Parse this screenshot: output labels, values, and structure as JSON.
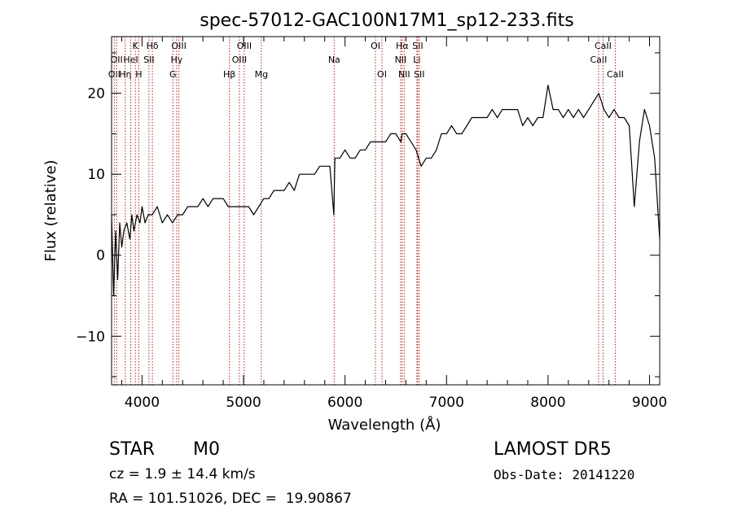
{
  "chart_data": {
    "type": "line",
    "title": "spec-57012-GAC100N17M1_sp12-233.fits",
    "xlabel": "Wavelength (Å)",
    "ylabel": "Flux (relative)",
    "xlim": [
      3700,
      9100
    ],
    "ylim": [
      -16,
      27
    ],
    "xticks": [
      4000,
      5000,
      6000,
      7000,
      8000,
      9000
    ],
    "yticks": [
      -10,
      0,
      10,
      20
    ],
    "xtick_labels": [
      "4000",
      "5000",
      "6000",
      "7000",
      "8000",
      "9000"
    ],
    "ytick_labels": [
      "−10",
      "0",
      "10",
      "20"
    ],
    "line_color": "#000000",
    "marker_color": "#b22222",
    "spectrum": {
      "x": [
        3700,
        3720,
        3740,
        3760,
        3780,
        3800,
        3820,
        3850,
        3880,
        3900,
        3920,
        3950,
        3980,
        4000,
        4030,
        4060,
        4100,
        4150,
        4200,
        4250,
        4300,
        4350,
        4400,
        4450,
        4500,
        4550,
        4600,
        4650,
        4700,
        4750,
        4800,
        4850,
        4900,
        4950,
        5000,
        5050,
        5100,
        5150,
        5200,
        5250,
        5300,
        5350,
        5400,
        5450,
        5500,
        5550,
        5600,
        5650,
        5700,
        5750,
        5800,
        5850,
        5890,
        5900,
        5950,
        6000,
        6050,
        6100,
        6150,
        6200,
        6250,
        6300,
        6350,
        6400,
        6450,
        6500,
        6550,
        6563,
        6600,
        6650,
        6700,
        6750,
        6800,
        6850,
        6900,
        6950,
        7000,
        7050,
        7100,
        7150,
        7200,
        7250,
        7300,
        7350,
        7400,
        7450,
        7500,
        7550,
        7600,
        7650,
        7700,
        7750,
        7800,
        7850,
        7900,
        7950,
        8000,
        8050,
        8100,
        8150,
        8200,
        8250,
        8300,
        8350,
        8400,
        8450,
        8500,
        8550,
        8600,
        8650,
        8700,
        8750,
        8800,
        8820,
        8850,
        8900,
        8950,
        9000,
        9050,
        9100
      ],
      "y": [
        5,
        -5,
        3,
        -3,
        4,
        1,
        3,
        4,
        2,
        5,
        3,
        5,
        4,
        6,
        4,
        5,
        5,
        6,
        4,
        5,
        4,
        5,
        5,
        6,
        6,
        6,
        7,
        6,
        7,
        7,
        7,
        6,
        6,
        6,
        6,
        6,
        5,
        6,
        7,
        7,
        8,
        8,
        8,
        9,
        8,
        10,
        10,
        10,
        10,
        11,
        11,
        11,
        5,
        12,
        12,
        13,
        12,
        12,
        13,
        13,
        14,
        14,
        14,
        14,
        15,
        15,
        14,
        15,
        15,
        14,
        13,
        11,
        12,
        12,
        13,
        15,
        15,
        16,
        15,
        15,
        16,
        17,
        17,
        17,
        17,
        18,
        17,
        18,
        18,
        18,
        18,
        16,
        17,
        16,
        17,
        17,
        21,
        18,
        18,
        17,
        18,
        17,
        18,
        17,
        18,
        19,
        20,
        18,
        17,
        18,
        17,
        17,
        16,
        12,
        6,
        14,
        18,
        16,
        12,
        2
      ]
    },
    "line_markers": [
      {
        "wavelength": 3727,
        "label": "OII",
        "row": 2
      },
      {
        "wavelength": 3750,
        "label": "OII",
        "row": 1
      },
      {
        "wavelength": 3835,
        "label": "Hη",
        "row": 2
      },
      {
        "wavelength": 3889,
        "label": "HeI",
        "row": 1
      },
      {
        "wavelength": 3934,
        "label": "K",
        "row": 0
      },
      {
        "wavelength": 3968,
        "label": "H",
        "row": 2
      },
      {
        "wavelength": 4068,
        "label": "SII",
        "row": 1
      },
      {
        "wavelength": 4102,
        "label": "Hδ",
        "row": 0
      },
      {
        "wavelength": 4304,
        "label": "G",
        "row": 2
      },
      {
        "wavelength": 4341,
        "label": "Hγ",
        "row": 1
      },
      {
        "wavelength": 4363,
        "label": "OIII",
        "row": 0
      },
      {
        "wavelength": 4861,
        "label": "Hβ",
        "row": 2
      },
      {
        "wavelength": 4959,
        "label": "OIII",
        "row": 1
      },
      {
        "wavelength": 5007,
        "label": "OIII",
        "row": 0
      },
      {
        "wavelength": 5175,
        "label": "Mg",
        "row": 2
      },
      {
        "wavelength": 5893,
        "label": "Na",
        "row": 1
      },
      {
        "wavelength": 6300,
        "label": "OI",
        "row": 0
      },
      {
        "wavelength": 6364,
        "label": "OI",
        "row": 2
      },
      {
        "wavelength": 6548,
        "label": "NII",
        "row": 1
      },
      {
        "wavelength": 6563,
        "label": "Hα",
        "row": 0
      },
      {
        "wavelength": 6583,
        "label": "NII",
        "row": 2
      },
      {
        "wavelength": 6708,
        "label": "Li",
        "row": 1
      },
      {
        "wavelength": 6716,
        "label": "SII",
        "row": 0
      },
      {
        "wavelength": 6731,
        "label": "SII",
        "row": 2
      },
      {
        "wavelength": 8498,
        "label": "CaII",
        "row": 1
      },
      {
        "wavelength": 8542,
        "label": "CaII",
        "row": 0
      },
      {
        "wavelength": 8662,
        "label": "CaII",
        "row": 2
      }
    ]
  },
  "info": {
    "class": "STAR",
    "subclass": "M0",
    "survey": "LAMOST DR5",
    "cz": "cz = 1.9 ± 14.4 km/s",
    "obs_date": "Obs-Date: 20141220",
    "coords": "RA = 101.51026, DEC =  19.90867"
  }
}
